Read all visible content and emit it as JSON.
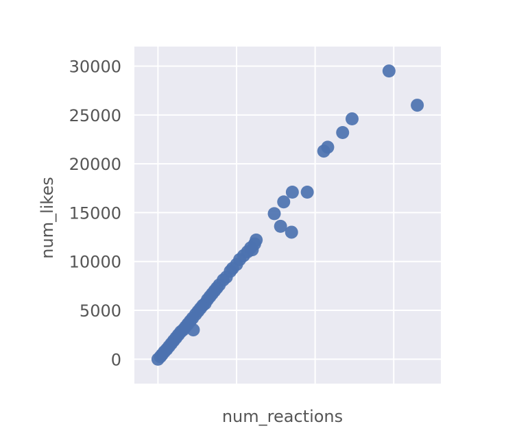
{
  "chart_data": {
    "type": "scatter",
    "title": "",
    "xlabel": "num_reactions",
    "ylabel": "num_likes",
    "xlim": [
      -3000,
      36000
    ],
    "ylim": [
      -2500,
      32000
    ],
    "xticks": [
      0,
      10000,
      20000,
      30000
    ],
    "yticks": [
      0,
      5000,
      10000,
      15000,
      20000,
      25000,
      30000
    ],
    "ytick_labels": [
      "0",
      "5000",
      "10000",
      "15000",
      "20000",
      "25000",
      "30000"
    ],
    "show_xtick_labels": false,
    "grid": true,
    "legend": "none",
    "series": [
      {
        "points": [
          [
            0,
            0
          ],
          [
            300,
            250
          ],
          [
            500,
            450
          ],
          [
            800,
            750
          ],
          [
            1100,
            1000
          ],
          [
            1400,
            1300
          ],
          [
            1700,
            1600
          ],
          [
            2000,
            1900
          ],
          [
            2300,
            2200
          ],
          [
            2600,
            2500
          ],
          [
            2900,
            2800
          ],
          [
            3200,
            3000
          ],
          [
            3500,
            3300
          ],
          [
            3800,
            3600
          ],
          [
            4100,
            3900
          ],
          [
            4400,
            4200
          ],
          [
            4500,
            3000
          ],
          [
            4800,
            4600
          ],
          [
            5100,
            4900
          ],
          [
            5400,
            5200
          ],
          [
            5700,
            5500
          ],
          [
            6000,
            5700
          ],
          [
            6300,
            6100
          ],
          [
            6600,
            6400
          ],
          [
            6900,
            6700
          ],
          [
            7200,
            7000
          ],
          [
            7500,
            7300
          ],
          [
            7800,
            7600
          ],
          [
            8300,
            8100
          ],
          [
            8700,
            8400
          ],
          [
            9200,
            9000
          ],
          [
            9500,
            9300
          ],
          [
            10000,
            9700
          ],
          [
            10400,
            10200
          ],
          [
            10900,
            10600
          ],
          [
            11400,
            11000
          ],
          [
            11800,
            11400
          ],
          [
            12000,
            11200
          ],
          [
            12300,
            11800
          ],
          [
            12500,
            12200
          ],
          [
            14800,
            14900
          ],
          [
            15600,
            13600
          ],
          [
            16000,
            16100
          ],
          [
            17000,
            13000
          ],
          [
            17100,
            17100
          ],
          [
            19000,
            17100
          ],
          [
            21100,
            21300
          ],
          [
            21600,
            21700
          ],
          [
            23500,
            23200
          ],
          [
            24700,
            24600
          ],
          [
            29400,
            29500
          ],
          [
            33000,
            26000
          ]
        ]
      }
    ],
    "colors": {
      "point": "#4c72b0",
      "plot_background": "#eaeaf2",
      "grid": "#ffffff",
      "text": "#555555"
    }
  }
}
